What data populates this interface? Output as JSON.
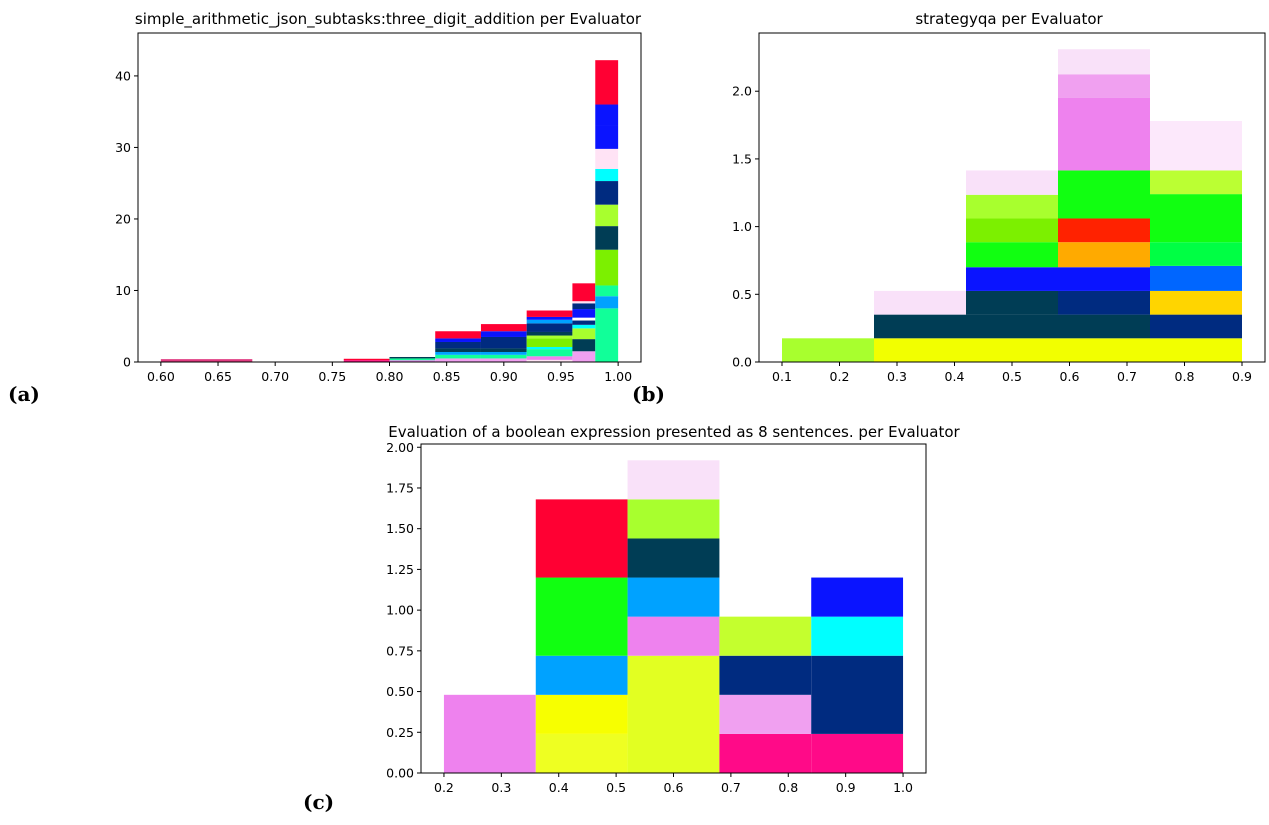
{
  "chart_data": [
    {
      "type": "bar",
      "stacked": true,
      "panel_label": "(a)",
      "title": "simple_arithmetic_json_subtasks:three_digit_addition per Evaluator",
      "xlim": [
        0.58,
        1.02
      ],
      "ylim": [
        0,
        46
      ],
      "xticks": [
        "0.60",
        "0.65",
        "0.70",
        "0.75",
        "0.80",
        "0.85",
        "0.90",
        "0.95",
        "1.00"
      ],
      "yticks": [
        "0",
        "10",
        "20",
        "30",
        "40"
      ],
      "grid": false,
      "bins": [
        {
          "x0": 0.6,
          "x1": 0.68,
          "segments": [
            {
              "h": 0.4,
              "color": "#e03a80"
            }
          ]
        },
        {
          "x0": 0.76,
          "x1": 0.8,
          "segments": [
            {
              "h": 0.25,
              "color": "#ff0a88"
            },
            {
              "h": 0.2,
              "color": "#ff0033"
            }
          ]
        },
        {
          "x0": 0.8,
          "x1": 0.84,
          "segments": [
            {
              "h": 0.25,
              "color": "#ee82ee"
            },
            {
              "h": 0.25,
              "color": "#11ff99"
            },
            {
              "h": 0.2,
              "color": "#003d55"
            }
          ]
        },
        {
          "x0": 0.84,
          "x1": 0.88,
          "segments": [
            {
              "h": 0.5,
              "color": "#f0a0f0"
            },
            {
              "h": 0.5,
              "color": "#11ff99"
            },
            {
              "h": 0.4,
              "color": "#00a2ff"
            },
            {
              "h": 0.5,
              "color": "#003d55"
            },
            {
              "h": 0.9,
              "color": "#002b80"
            },
            {
              "h": 0.5,
              "color": "#0a14ff"
            },
            {
              "h": 1.0,
              "color": "#ff0033"
            }
          ]
        },
        {
          "x0": 0.88,
          "x1": 0.92,
          "segments": [
            {
              "h": 0.5,
              "color": "#f0a0f0"
            },
            {
              "h": 0.5,
              "color": "#11ff99"
            },
            {
              "h": 0.4,
              "color": "#00a2ff"
            },
            {
              "h": 0.5,
              "color": "#003d55"
            },
            {
              "h": 1.6,
              "color": "#002b80"
            },
            {
              "h": 0.8,
              "color": "#0a14ff"
            },
            {
              "h": 1.0,
              "color": "#ff0033"
            }
          ]
        },
        {
          "x0": 0.92,
          "x1": 0.96,
          "segments": [
            {
              "h": 0.3,
              "color": "#ffe3f5"
            },
            {
              "h": 0.5,
              "color": "#ee82ee"
            },
            {
              "h": 1.0,
              "color": "#11ff99"
            },
            {
              "h": 0.3,
              "color": "#00ffff"
            },
            {
              "h": 1.2,
              "color": "#7cf000"
            },
            {
              "h": 0.4,
              "color": "#a8ff2e"
            },
            {
              "h": 0.5,
              "color": "#003d55"
            },
            {
              "h": 1.2,
              "color": "#002b80"
            },
            {
              "h": 0.5,
              "color": "#00a2ff"
            },
            {
              "h": 0.4,
              "color": "#0a14ff"
            },
            {
              "h": 0.9,
              "color": "#ff0033"
            }
          ]
        },
        {
          "x0": 0.96,
          "x1": 0.98,
          "segments": [
            {
              "h": 1.5,
              "color": "#f0a0f0"
            },
            {
              "h": 1.7,
              "color": "#003d55"
            },
            {
              "h": 1.5,
              "color": "#a8ff2e"
            },
            {
              "h": 0.5,
              "color": "#00ffff"
            },
            {
              "h": 0.6,
              "color": "#002b80"
            },
            {
              "h": 0.4,
              "color": "#ffffff"
            },
            {
              "h": 1.2,
              "color": "#0a14ff"
            },
            {
              "h": 0.8,
              "color": "#002b80"
            },
            {
              "h": 0.3,
              "color": "#ffe3f5"
            },
            {
              "h": 2.5,
              "color": "#ff0033"
            }
          ]
        },
        {
          "x0": 0.98,
          "x1": 1.0,
          "segments": [
            {
              "h": 7.5,
              "color": "#11ff99"
            },
            {
              "h": 1.7,
              "color": "#00a2ff"
            },
            {
              "h": 1.5,
              "color": "#11ff99"
            },
            {
              "h": 5.0,
              "color": "#7cf000"
            },
            {
              "h": 3.3,
              "color": "#003d55"
            },
            {
              "h": 3.0,
              "color": "#a8ff2e"
            },
            {
              "h": 3.3,
              "color": "#002b80"
            },
            {
              "h": 1.7,
              "color": "#00ffff"
            },
            {
              "h": 2.8,
              "color": "#ffe3f5"
            },
            {
              "h": 3.2,
              "color": "#0a14ff"
            },
            {
              "h": 3.0,
              "color": "#0a14ff"
            },
            {
              "h": 6.2,
              "color": "#ff0033"
            }
          ]
        }
      ]
    },
    {
      "type": "bar",
      "stacked": true,
      "panel_label": "(b)",
      "title": "strategyqa per Evaluator",
      "xlim": [
        0.06,
        0.94
      ],
      "ylim": [
        0,
        2.43
      ],
      "xticks": [
        "0.1",
        "0.2",
        "0.3",
        "0.4",
        "0.5",
        "0.6",
        "0.7",
        "0.8",
        "0.9"
      ],
      "yticks": [
        "0.0",
        "0.5",
        "1.0",
        "1.5",
        "2.0"
      ],
      "grid": false,
      "bins": [
        {
          "x0": 0.1,
          "x1": 0.26,
          "segments": [
            {
              "h": 0.175,
              "color": "#a8ff2e"
            }
          ]
        },
        {
          "x0": 0.26,
          "x1": 0.42,
          "segments": [
            {
              "h": 0.175,
              "color": "#f2ff00"
            },
            {
              "h": 0.175,
              "color": "#003d55"
            },
            {
              "h": 0.175,
              "color": "#f9e1f9"
            }
          ]
        },
        {
          "x0": 0.42,
          "x1": 0.58,
          "segments": [
            {
              "h": 0.175,
              "color": "#f2ff00"
            },
            {
              "h": 0.175,
              "color": "#003d55"
            },
            {
              "h": 0.175,
              "color": "#003d55"
            },
            {
              "h": 0.175,
              "color": "#0a14ff"
            },
            {
              "h": 0.185,
              "color": "#11ff11"
            },
            {
              "h": 0.175,
              "color": "#7cf000"
            },
            {
              "h": 0.175,
              "color": "#a8ff2e"
            },
            {
              "h": 0.18,
              "color": "#f9e1f9"
            }
          ]
        },
        {
          "x0": 0.58,
          "x1": 0.74,
          "segments": [
            {
              "h": 0.175,
              "color": "#f2ff00"
            },
            {
              "h": 0.175,
              "color": "#003d55"
            },
            {
              "h": 0.175,
              "color": "#002b80"
            },
            {
              "h": 0.175,
              "color": "#0a14ff"
            },
            {
              "h": 0.185,
              "color": "#ffaa00"
            },
            {
              "h": 0.175,
              "color": "#ff2200"
            },
            {
              "h": 0.355,
              "color": "#11ff11"
            },
            {
              "h": 0.535,
              "color": "#ee82ee"
            },
            {
              "h": 0.175,
              "color": "#f0a0f0"
            },
            {
              "h": 0.185,
              "color": "#f9e1f9"
            }
          ]
        },
        {
          "x0": 0.74,
          "x1": 0.9,
          "segments": [
            {
              "h": 0.175,
              "color": "#f2ff00"
            },
            {
              "h": 0.175,
              "color": "#002b80"
            },
            {
              "h": 0.175,
              "color": "#ffd500"
            },
            {
              "h": 0.185,
              "color": "#0066ff"
            },
            {
              "h": 0.175,
              "color": "#00ff44"
            },
            {
              "h": 0.355,
              "color": "#11ff11"
            },
            {
              "h": 0.175,
              "color": "#bbff33"
            },
            {
              "h": 0.365,
              "color": "#fce8fb"
            }
          ]
        }
      ]
    },
    {
      "type": "bar",
      "stacked": true,
      "panel_label": "(c)",
      "title": "Evaluation of a boolean expression presented as 8 sentences. per Evaluator",
      "xlim": [
        0.16,
        1.04
      ],
      "ylim": [
        0,
        2.02
      ],
      "xticks": [
        "0.2",
        "0.3",
        "0.4",
        "0.5",
        "0.6",
        "0.7",
        "0.8",
        "0.9",
        "1.0"
      ],
      "yticks": [
        "0.00",
        "0.25",
        "0.50",
        "0.75",
        "1.00",
        "1.25",
        "1.50",
        "1.75",
        "2.00"
      ],
      "grid": false,
      "bins": [
        {
          "x0": 0.2,
          "x1": 0.36,
          "segments": [
            {
              "h": 0.48,
              "color": "#ee82ee"
            }
          ]
        },
        {
          "x0": 0.36,
          "x1": 0.52,
          "segments": [
            {
              "h": 0.24,
              "color": "#eeff22"
            },
            {
              "h": 0.24,
              "color": "#f7ff00"
            },
            {
              "h": 0.24,
              "color": "#00a2ff"
            },
            {
              "h": 0.48,
              "color": "#11ff11"
            },
            {
              "h": 0.48,
              "color": "#ff0033"
            }
          ]
        },
        {
          "x0": 0.52,
          "x1": 0.68,
          "segments": [
            {
              "h": 0.72,
              "color": "#e2ff22"
            },
            {
              "h": 0.24,
              "color": "#ee82ee"
            },
            {
              "h": 0.24,
              "color": "#00a2ff"
            },
            {
              "h": 0.24,
              "color": "#003d55"
            },
            {
              "h": 0.24,
              "color": "#a8ff2e"
            },
            {
              "h": 0.24,
              "color": "#f9e1f9"
            }
          ]
        },
        {
          "x0": 0.68,
          "x1": 0.84,
          "segments": [
            {
              "h": 0.24,
              "color": "#ff0a88"
            },
            {
              "h": 0.24,
              "color": "#f0a0f0"
            },
            {
              "h": 0.24,
              "color": "#002b80"
            },
            {
              "h": 0.24,
              "color": "#c4ff2e"
            }
          ]
        },
        {
          "x0": 0.84,
          "x1": 1.0,
          "segments": [
            {
              "h": 0.24,
              "color": "#ff0a88"
            },
            {
              "h": 0.48,
              "color": "#002b80"
            },
            {
              "h": 0.24,
              "color": "#00ffff"
            },
            {
              "h": 0.24,
              "color": "#0a14ff"
            }
          ]
        }
      ]
    }
  ]
}
